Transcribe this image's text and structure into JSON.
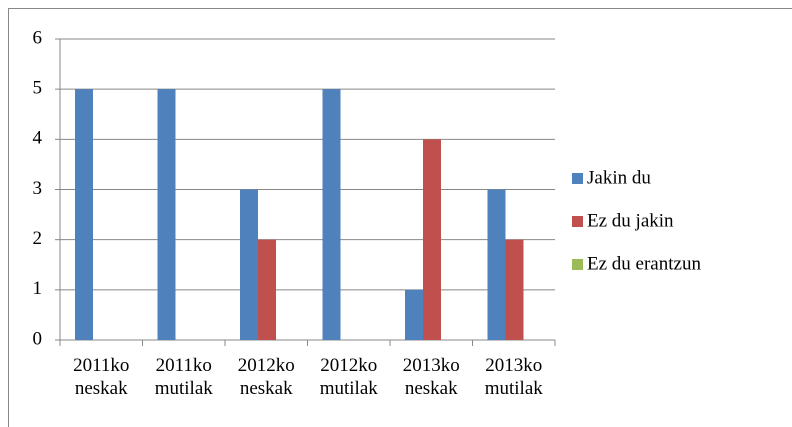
{
  "chart_data": {
    "type": "bar",
    "categories": [
      "2011ko neskak",
      "2011ko mutilak",
      "2012ko neskak",
      "2012ko mutilak",
      "2013ko neskak",
      "2013ko mutilak"
    ],
    "series": [
      {
        "name": "Jakin du",
        "color": "#4f81bd",
        "values": [
          5,
          5,
          3,
          5,
          1,
          3
        ]
      },
      {
        "name": "Ez du jakin",
        "color": "#c0504d",
        "values": [
          0,
          0,
          2,
          0,
          4,
          2
        ]
      },
      {
        "name": "Ez du erantzun",
        "color": "#9bbb59",
        "values": [
          0,
          0,
          0,
          0,
          0,
          0
        ]
      }
    ],
    "ylim": [
      0,
      6
    ],
    "yticks": [
      0,
      1,
      2,
      3,
      4,
      5,
      6
    ],
    "grid": true,
    "legend": "right"
  }
}
